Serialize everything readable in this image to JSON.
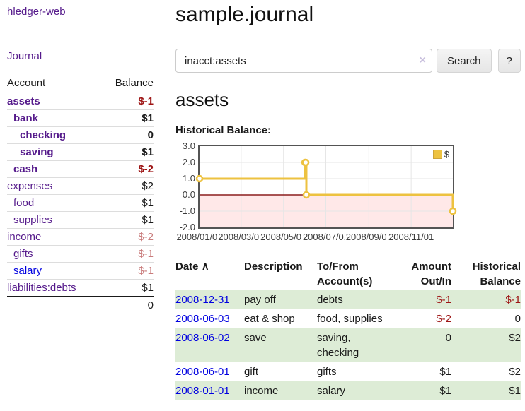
{
  "app": {
    "brand": "hledger-web",
    "nav_journal": "Journal"
  },
  "colors": {
    "link_purple": "#551a8b",
    "link_blue": "#0000e0",
    "negative_strong": "#9d1414",
    "negative_soft": "#c97c7c",
    "row_stripe_green": "#ddecd6",
    "chart_series_gold": "#edc240",
    "chart_zero_line": "#8b1d1d",
    "chart_negative_fill": "rgba(255,0,0,0.09)"
  },
  "sidebar": {
    "header": {
      "account": "Account",
      "balance": "Balance"
    },
    "accounts": [
      {
        "name": "assets",
        "depth": 0,
        "bold": true,
        "balance": "$-1",
        "neg": "strong",
        "link": "purple"
      },
      {
        "name": "bank",
        "depth": 1,
        "bold": true,
        "balance": "$1",
        "neg": "none",
        "link": "purple"
      },
      {
        "name": "checking",
        "depth": 2,
        "bold": true,
        "balance": "0",
        "neg": "none",
        "link": "purple"
      },
      {
        "name": "saving",
        "depth": 2,
        "bold": true,
        "balance": "$1",
        "neg": "none",
        "link": "purple"
      },
      {
        "name": "cash",
        "depth": 1,
        "bold": true,
        "balance": "$-2",
        "neg": "strong",
        "link": "purple"
      },
      {
        "name": "expenses",
        "depth": 0,
        "bold": false,
        "balance": "$2",
        "neg": "none",
        "link": "purple"
      },
      {
        "name": "food",
        "depth": 1,
        "bold": false,
        "balance": "$1",
        "neg": "none",
        "link": "purple"
      },
      {
        "name": "supplies",
        "depth": 1,
        "bold": false,
        "balance": "$1",
        "neg": "none",
        "link": "purple"
      },
      {
        "name": "income",
        "depth": 0,
        "bold": false,
        "balance": "$-2",
        "neg": "soft",
        "link": "purple"
      },
      {
        "name": "gifts",
        "depth": 1,
        "bold": false,
        "balance": "$-1",
        "neg": "soft",
        "link": "purple"
      },
      {
        "name": "salary",
        "depth": 1,
        "bold": false,
        "balance": "$-1",
        "neg": "soft",
        "link": "blue"
      },
      {
        "name": "liabilities:debts",
        "depth": 0,
        "bold": false,
        "balance": "$1",
        "neg": "none",
        "link": "purple"
      }
    ],
    "total": "0"
  },
  "header": {
    "title": "sample.journal"
  },
  "search": {
    "value": "inacct:assets",
    "clear_icon": "×",
    "search_label": "Search",
    "help_label": "?"
  },
  "account_page": {
    "heading": "assets",
    "chart_label": "Historical Balance:"
  },
  "chart_data": {
    "type": "line",
    "title": "Historical Balance:",
    "step": true,
    "xlim": [
      "2008-01-01",
      "2008-12-31"
    ],
    "ylim": [
      -2,
      3
    ],
    "grid": true,
    "legend_position": "top-right",
    "series": [
      {
        "name": "$",
        "color": "#edc240",
        "points": [
          [
            "2008-01-01",
            1
          ],
          [
            "2008-06-01",
            2
          ],
          [
            "2008-06-02",
            2
          ],
          [
            "2008-06-03",
            0
          ],
          [
            "2008-12-31",
            -1
          ]
        ]
      }
    ],
    "y_ticks": [
      {
        "v": 3,
        "label": "3.0"
      },
      {
        "v": 2,
        "label": "2.0"
      },
      {
        "v": 1,
        "label": "1.0"
      },
      {
        "v": 0,
        "label": "0.0"
      },
      {
        "v": -1,
        "label": "-1.0"
      },
      {
        "v": -2,
        "label": "-2.0"
      }
    ],
    "x_ticks": [
      {
        "label": "2008/01/01"
      },
      {
        "label": "2008/03/01"
      },
      {
        "label": "2008/05/01"
      },
      {
        "label": "2008/07/01"
      },
      {
        "label": "2008/09/01"
      },
      {
        "label": "2008/11/01"
      }
    ]
  },
  "register": {
    "columns": {
      "date": "Date",
      "sort_icon": "∧",
      "description": "Description",
      "accounts": "To/From Account(s)",
      "amount": "Amount Out/In",
      "balance": "Historical Balance"
    },
    "rows": [
      {
        "date": "2008-12-31",
        "description": "pay off",
        "accounts": "debts",
        "amount": "$-1",
        "amount_negative": true,
        "balance": "$-1",
        "balance_negative": true
      },
      {
        "date": "2008-06-03",
        "description": "eat & shop",
        "accounts": "food, supplies",
        "amount": "$-2",
        "amount_negative": true,
        "balance": "0",
        "balance_negative": false
      },
      {
        "date": "2008-06-02",
        "description": "save",
        "accounts": "saving, checking",
        "amount": "0",
        "amount_negative": false,
        "balance": "$2",
        "balance_negative": false
      },
      {
        "date": "2008-06-01",
        "description": "gift",
        "accounts": "gifts",
        "amount": "$1",
        "amount_negative": false,
        "balance": "$2",
        "balance_negative": false
      },
      {
        "date": "2008-01-01",
        "description": "income",
        "accounts": "salary",
        "amount": "$1",
        "amount_negative": false,
        "balance": "$1",
        "balance_negative": false
      }
    ]
  }
}
